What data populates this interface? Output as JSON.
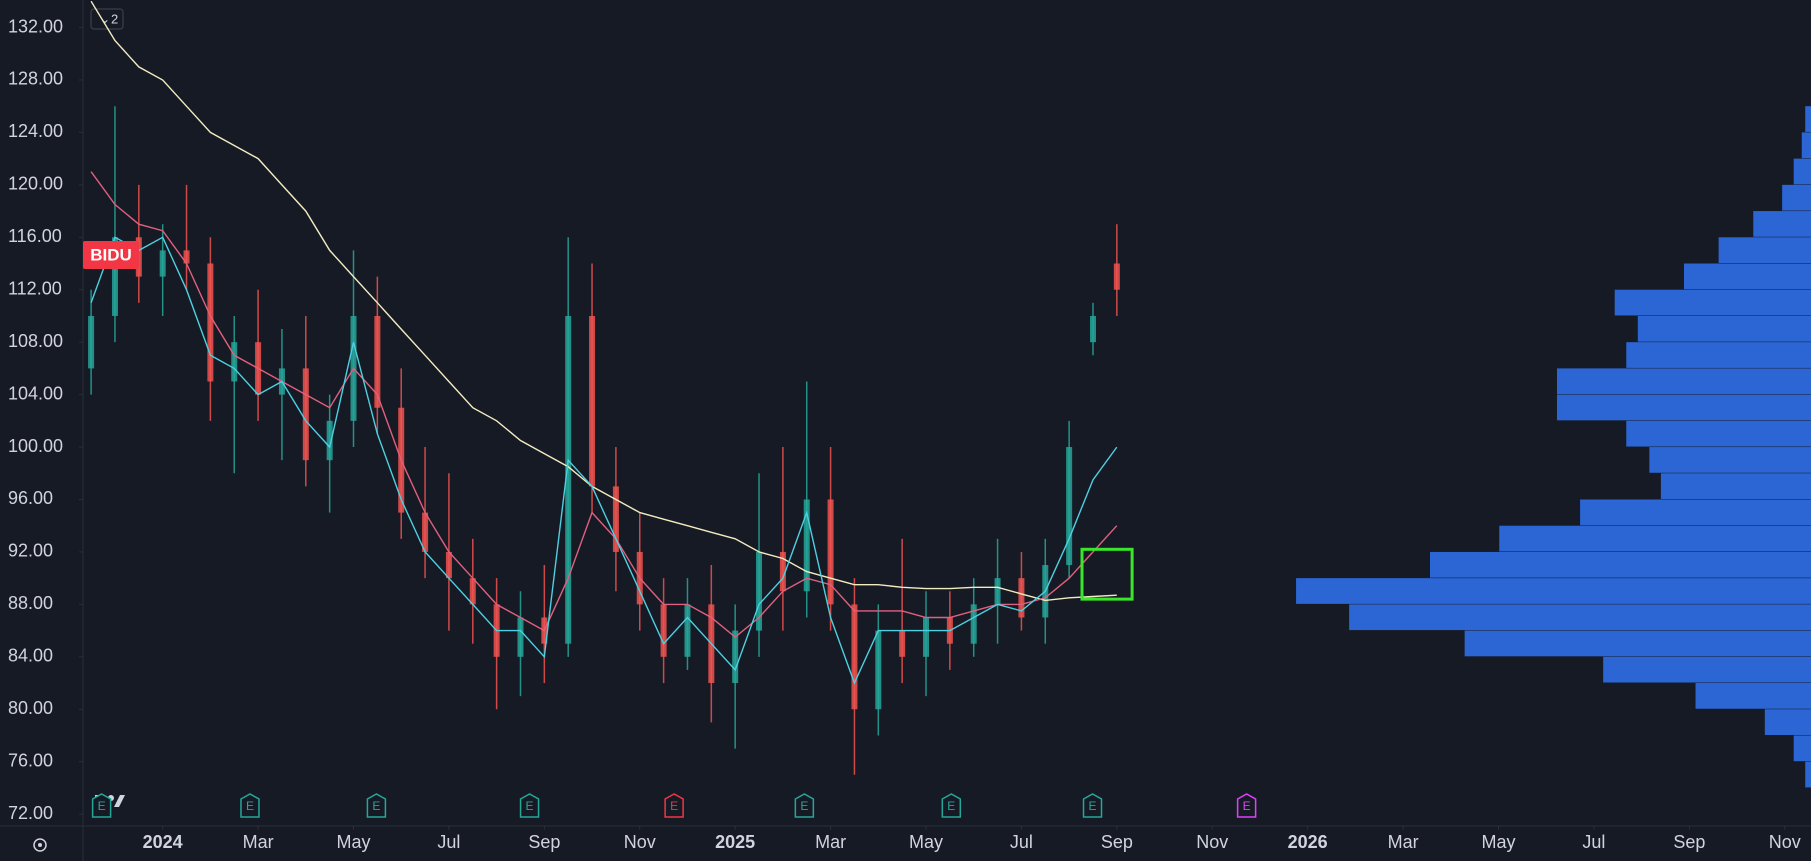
{
  "chart_data": {
    "type": "candlestick",
    "symbol_label": "BIDU",
    "symbol_color": "#f23645",
    "pane_badge": "2",
    "ylim": [
      71.4,
      134.1
    ],
    "yticks": [
      {
        "value": 72,
        "label": "72.00"
      },
      {
        "value": 76,
        "label": "76.00"
      },
      {
        "value": 80,
        "label": "80.00"
      },
      {
        "value": 84,
        "label": "84.00"
      },
      {
        "value": 88,
        "label": "88.00"
      },
      {
        "value": 92,
        "label": "92.00"
      },
      {
        "value": 96,
        "label": "96.00"
      },
      {
        "value": 100,
        "label": "100.00"
      },
      {
        "value": 104,
        "label": "104.00"
      },
      {
        "value": 108,
        "label": "108.00"
      },
      {
        "value": 112,
        "label": "112.00"
      },
      {
        "value": 116,
        "label": "116.00"
      },
      {
        "value": 120,
        "label": "120.00"
      },
      {
        "value": 124,
        "label": "124.00"
      },
      {
        "value": 128,
        "label": "128.00"
      },
      {
        "value": 132,
        "label": "132.00"
      }
    ],
    "xlim": [
      -1.67,
      34.55
    ],
    "xticks": [
      {
        "value": 0,
        "label": "2024"
      },
      {
        "value": 2,
        "label": "Mar"
      },
      {
        "value": 4,
        "label": "May"
      },
      {
        "value": 6,
        "label": "Jul"
      },
      {
        "value": 8,
        "label": "Sep"
      },
      {
        "value": 10,
        "label": "Nov"
      },
      {
        "value": 12,
        "label": "2025"
      },
      {
        "value": 14,
        "label": "Mar"
      },
      {
        "value": 16,
        "label": "May"
      },
      {
        "value": 18,
        "label": "Jul"
      },
      {
        "value": 20,
        "label": "Sep"
      },
      {
        "value": 22,
        "label": "Nov"
      },
      {
        "value": 24,
        "label": "2026"
      },
      {
        "value": 26,
        "label": "Mar"
      },
      {
        "value": 28,
        "label": "May"
      },
      {
        "value": 30,
        "label": "Jul"
      },
      {
        "value": 32,
        "label": "Sep"
      },
      {
        "value": 34,
        "label": "Nov"
      }
    ],
    "up_color": "#26a69a",
    "down_color": "#ef5350",
    "candles": {
      "x": [
        -1.5,
        -1,
        -0.5,
        0,
        0.5,
        1,
        1.5,
        2,
        2.5,
        3,
        3.5,
        4,
        4.5,
        5,
        5.5,
        6,
        6.5,
        7,
        7.5,
        8,
        8.5,
        9,
        9.5,
        10,
        10.5,
        11,
        11.5,
        12,
        12.5,
        13,
        13.5,
        14,
        14.5,
        15,
        15.5,
        16,
        16.5,
        17,
        17.5,
        18,
        18.5,
        19,
        19.5,
        20
      ],
      "open": [
        106,
        110,
        116,
        113,
        115,
        114,
        105,
        108,
        104,
        106,
        99,
        102,
        110,
        103,
        95,
        92,
        90,
        88,
        84,
        87,
        85,
        110,
        97,
        92,
        88,
        84,
        88,
        82,
        86,
        92,
        89,
        96,
        88,
        80,
        86,
        84,
        87,
        85,
        88,
        90,
        87,
        91,
        108,
        114
      ],
      "high": [
        112,
        126,
        120,
        117,
        120,
        116,
        110,
        112,
        109,
        110,
        104,
        115,
        113,
        106,
        100,
        98,
        93,
        90,
        89,
        91,
        116,
        114,
        100,
        95,
        90,
        90,
        91,
        88,
        98,
        100,
        105,
        100,
        90,
        88,
        93,
        89,
        89,
        90,
        93,
        92,
        93,
        102,
        111,
        117
      ],
      "low": [
        104,
        108,
        111,
        110,
        112,
        102,
        98,
        102,
        99,
        97,
        95,
        100,
        101,
        93,
        90,
        86,
        85,
        80,
        81,
        82,
        84,
        95,
        89,
        86,
        82,
        83,
        79,
        77,
        84,
        86,
        87,
        86,
        75,
        78,
        82,
        81,
        83,
        84,
        85,
        86,
        85,
        90,
        107,
        110
      ],
      "close": [
        110,
        116,
        113,
        115,
        114,
        105,
        108,
        104,
        106,
        99,
        102,
        110,
        103,
        95,
        92,
        90,
        88,
        84,
        87,
        85,
        110,
        97,
        92,
        88,
        84,
        88,
        82,
        86,
        92,
        89,
        96,
        88,
        80,
        86,
        84,
        87,
        85,
        88,
        90,
        87,
        91,
        100,
        110,
        112
      ]
    },
    "ma_lines": [
      {
        "color": "#f2ecc0",
        "values": [
          134,
          131,
          129,
          128,
          126,
          124,
          123,
          122,
          120,
          118,
          115,
          113,
          111,
          109,
          107,
          105,
          103,
          102,
          100.5,
          99.5,
          98.5,
          97,
          96,
          95,
          94.5,
          94,
          93.5,
          93,
          92,
          91.5,
          90.5,
          90,
          89.5,
          89.5,
          89.3,
          89.2,
          89.2,
          89.3,
          89.3,
          88.8,
          88.3,
          88.5,
          88.6,
          88.7
        ]
      },
      {
        "color": "#e0607e",
        "values": [
          121,
          118.5,
          117,
          116.5,
          114,
          110,
          107,
          106,
          105,
          104,
          103,
          106,
          104,
          99,
          95,
          92,
          90,
          88,
          87,
          86,
          90,
          95,
          93,
          90,
          88,
          88,
          87,
          85.5,
          87,
          89,
          90,
          89.5,
          87.5,
          87.5,
          87.5,
          87,
          87,
          87.5,
          88,
          88,
          88.5,
          90,
          92,
          94
        ]
      },
      {
        "color": "#4dd0e1",
        "values": [
          111,
          116,
          115,
          116,
          112,
          107,
          106,
          104,
          105,
          102,
          100,
          108,
          101,
          96,
          92,
          90,
          88,
          86,
          86,
          84,
          99,
          97,
          93,
          89,
          85,
          87,
          85,
          83,
          88,
          90,
          95,
          87,
          82,
          86,
          86,
          86,
          86,
          87,
          88,
          87.5,
          89,
          93,
          97.5,
          100
        ]
      }
    ],
    "volume_profile": {
      "color": "#2f6fe8",
      "bins": [
        74,
        76,
        78,
        80,
        82,
        84,
        86,
        88,
        90,
        92,
        94,
        96,
        98,
        100,
        102,
        104,
        106,
        108,
        110,
        112,
        114,
        116,
        118,
        120,
        122,
        124,
        126
      ],
      "values": [
        5,
        15,
        40,
        100,
        180,
        300,
        400,
        446,
        330,
        270,
        200,
        130,
        140,
        160,
        220,
        220,
        160,
        150,
        170,
        110,
        80,
        50,
        25,
        15,
        8,
        5
      ]
    },
    "events": [
      {
        "x": -1.28,
        "label": "E",
        "color": "#26a69a"
      },
      {
        "x": 1.83,
        "label": "E",
        "color": "#26a69a"
      },
      {
        "x": 4.48,
        "label": "E",
        "color": "#26a69a"
      },
      {
        "x": 7.69,
        "label": "E",
        "color": "#26a69a"
      },
      {
        "x": 10.72,
        "label": "E",
        "color": "#f23645"
      },
      {
        "x": 13.45,
        "label": "E",
        "color": "#26a69a"
      },
      {
        "x": 16.53,
        "label": "E",
        "color": "#26a69a"
      },
      {
        "x": 19.49,
        "label": "E",
        "color": "#26a69a"
      },
      {
        "x": 22.72,
        "label": "E",
        "color": "#e040fb"
      }
    ],
    "highlight_box": {
      "x": [
        19.27,
        20.32
      ],
      "y": [
        88.4,
        92.2
      ],
      "color": "#39e62a"
    }
  }
}
